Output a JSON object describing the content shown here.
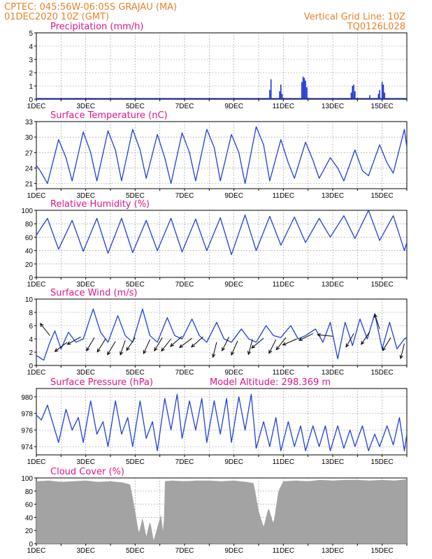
{
  "header": {
    "location": "CPTEC:  045:56W-06:05S  GRAJAU (MA)",
    "datetime": "01DEC2020 10Z (GMT)",
    "grid_line": "Vertical Grid Line: 10Z",
    "code": "TQ0126L028"
  },
  "colors": {
    "header": "#e8822a",
    "title": "#e0168a",
    "line": "#2040d8",
    "cloud": "#a3a3a3",
    "bar": "#1c32d0"
  },
  "chart_data": [
    {
      "id": "precip",
      "type": "bar",
      "title": "Precipitation (mm/h)",
      "ylim": [
        0,
        5
      ],
      "yticks": [
        "0",
        "1",
        "2",
        "3",
        "4",
        "5"
      ],
      "xticks": [
        "1DEC",
        "3DEC",
        "5DEC",
        "7DEC",
        "9DEC",
        "11DEC",
        "13DEC",
        "15DEC"
      ],
      "x_unit": "day_of_december",
      "bars": [
        {
          "x": 10.45,
          "v": 0.7
        },
        {
          "x": 10.5,
          "v": 1.5
        },
        {
          "x": 10.85,
          "v": 0.6
        },
        {
          "x": 10.9,
          "v": 1.1
        },
        {
          "x": 10.95,
          "v": 0.4
        },
        {
          "x": 11.75,
          "v": 1.3
        },
        {
          "x": 11.8,
          "v": 1.7
        },
        {
          "x": 11.85,
          "v": 1.6
        },
        {
          "x": 11.9,
          "v": 1.4
        },
        {
          "x": 11.95,
          "v": 0.9
        },
        {
          "x": 13.75,
          "v": 0.5
        },
        {
          "x": 13.8,
          "v": 1.0
        },
        {
          "x": 13.85,
          "v": 1.1
        },
        {
          "x": 13.9,
          "v": 0.6
        },
        {
          "x": 14.5,
          "v": 0.3
        },
        {
          "x": 14.85,
          "v": 0.4
        },
        {
          "x": 14.9,
          "v": 0.7
        },
        {
          "x": 15.0,
          "v": 1.3
        },
        {
          "x": 15.05,
          "v": 1.1
        },
        {
          "x": 15.1,
          "v": 0.5
        }
      ]
    },
    {
      "id": "temp",
      "type": "line",
      "title": "Surface Temperature (nC)",
      "ylim": [
        20,
        33
      ],
      "yticks": [
        "21",
        "24",
        "27",
        "30",
        "33"
      ],
      "ytick_values": [
        21,
        24,
        27,
        30,
        33
      ],
      "xticks": [
        "1DEC",
        "3DEC",
        "5DEC",
        "7DEC",
        "9DEC",
        "11DEC",
        "13DEC",
        "15DEC"
      ],
      "x": [
        1.0,
        1.15,
        1.45,
        1.9,
        2.2,
        2.45,
        2.9,
        3.2,
        3.45,
        3.9,
        4.2,
        4.45,
        4.9,
        5.2,
        5.45,
        5.9,
        6.2,
        6.45,
        6.9,
        7.2,
        7.45,
        7.9,
        8.2,
        8.45,
        8.9,
        9.2,
        9.45,
        9.9,
        10.2,
        10.45,
        10.9,
        11.2,
        11.45,
        11.9,
        12.2,
        12.45,
        12.9,
        13.2,
        13.45,
        13.9,
        14.2,
        14.45,
        14.9,
        15.2,
        15.45,
        15.9,
        16.0
      ],
      "y": [
        24.5,
        23.5,
        21.0,
        29.5,
        26.0,
        21.5,
        31.0,
        27.0,
        21.5,
        31.2,
        27.5,
        21.5,
        31.5,
        27.5,
        22.0,
        30.5,
        26.0,
        21.0,
        30.8,
        27.0,
        21.5,
        31.5,
        28.0,
        21.5,
        30.5,
        27.0,
        21.0,
        32.0,
        28.5,
        21.5,
        29.5,
        25.0,
        22.0,
        29.0,
        25.5,
        22.0,
        26.0,
        24.0,
        21.5,
        27.5,
        23.5,
        22.5,
        28.5,
        25.0,
        23.0,
        31.5,
        28.0
      ]
    },
    {
      "id": "rh",
      "type": "line",
      "title": "Relative Humidity (%)",
      "ylim": [
        0,
        100
      ],
      "yticks": [
        "0",
        "20",
        "40",
        "60",
        "80",
        "100"
      ],
      "ytick_values": [
        0,
        20,
        40,
        60,
        80,
        100
      ],
      "xticks": [
        "1DEC",
        "3DEC",
        "5DEC",
        "7DEC",
        "9DEC",
        "11DEC",
        "13DEC",
        "15DEC"
      ],
      "x": [
        1.0,
        1.45,
        1.9,
        2.45,
        2.9,
        3.45,
        3.9,
        4.45,
        4.9,
        5.45,
        5.9,
        6.45,
        6.9,
        7.45,
        7.9,
        8.45,
        8.9,
        9.45,
        9.9,
        10.45,
        10.9,
        11.45,
        11.9,
        12.45,
        12.9,
        13.45,
        13.9,
        14.45,
        14.9,
        15.45,
        15.9,
        16.0
      ],
      "y": [
        63,
        88,
        42,
        85,
        39,
        88,
        36,
        88,
        37,
        85,
        40,
        88,
        38,
        87,
        40,
        89,
        34,
        93,
        40,
        91,
        48,
        90,
        52,
        88,
        60,
        92,
        58,
        100,
        55,
        92,
        40,
        52
      ]
    },
    {
      "id": "wind",
      "type": "line",
      "title": "Surface Wind (m/s)",
      "ylim": [
        0,
        10
      ],
      "yticks": [
        "0",
        "2",
        "4",
        "6",
        "8",
        "10"
      ],
      "ytick_values": [
        0,
        2,
        4,
        6,
        8,
        10
      ],
      "xticks": [
        "1DEC",
        "3DEC",
        "5DEC",
        "7DEC",
        "9DEC",
        "11DEC",
        "13DEC",
        "15DEC"
      ],
      "x": [
        1.0,
        1.3,
        1.55,
        1.75,
        2.0,
        2.3,
        2.6,
        2.9,
        3.3,
        3.6,
        3.9,
        4.3,
        4.6,
        4.9,
        5.3,
        5.6,
        5.9,
        6.3,
        6.6,
        6.9,
        7.3,
        7.6,
        7.9,
        8.3,
        8.6,
        8.9,
        9.3,
        9.6,
        9.9,
        10.3,
        10.6,
        10.9,
        11.3,
        11.6,
        11.9,
        12.3,
        12.6,
        12.9,
        13.2,
        13.5,
        13.8,
        14.1,
        14.4,
        14.7,
        15.0,
        15.3,
        15.6,
        15.9,
        16.0
      ],
      "y": [
        1.5,
        0.8,
        3.5,
        5.2,
        2.5,
        5.0,
        3.5,
        4.0,
        8.5,
        5.0,
        3.5,
        7.5,
        4.5,
        3.5,
        8.5,
        4.5,
        3.5,
        7.2,
        4.5,
        4.0,
        7.0,
        4.5,
        3.5,
        6.5,
        4.0,
        3.5,
        5.5,
        4.0,
        3.5,
        6.0,
        4.5,
        4.2,
        6.0,
        4.0,
        4.5,
        5.5,
        3.5,
        6.5,
        1.0,
        6.5,
        3.0,
        7.0,
        4.0,
        7.8,
        2.5,
        6.5,
        2.5,
        4.0,
        4.2
      ],
      "arrows": [
        {
          "x": 1.55,
          "y": 4.5,
          "dx": -0.4,
          "dy": 0.5
        },
        {
          "x": 2.25,
          "y": 3.5,
          "dx": -0.8,
          "dy": -0.6
        },
        {
          "x": 2.8,
          "y": 4.3,
          "dx": -0.9,
          "dy": -0.5
        },
        {
          "x": 3.35,
          "y": 4.2,
          "dx": -0.6,
          "dy": -1.0
        },
        {
          "x": 3.8,
          "y": 4.0,
          "dx": -0.5,
          "dy": -0.8
        },
        {
          "x": 4.2,
          "y": 3.6,
          "dx": -0.6,
          "dy": -1.0
        },
        {
          "x": 4.6,
          "y": 3.8,
          "dx": -0.4,
          "dy": -1.2
        },
        {
          "x": 5.0,
          "y": 4.2,
          "dx": -0.6,
          "dy": -0.9
        },
        {
          "x": 5.6,
          "y": 3.9,
          "dx": -0.5,
          "dy": -1.1
        },
        {
          "x": 6.1,
          "y": 4.2,
          "dx": -0.6,
          "dy": -1.0
        },
        {
          "x": 6.45,
          "y": 4.0,
          "dx": -0.7,
          "dy": -0.9
        },
        {
          "x": 6.9,
          "y": 4.4,
          "dx": -0.8,
          "dy": -0.7
        },
        {
          "x": 7.3,
          "y": 4.1,
          "dx": -0.8,
          "dy": -0.6
        },
        {
          "x": 7.75,
          "y": 4.3,
          "dx": -0.8,
          "dy": -0.7
        },
        {
          "x": 8.3,
          "y": 3.5,
          "dx": -0.3,
          "dy": -1.2
        },
        {
          "x": 8.8,
          "y": 4.3,
          "dx": -0.6,
          "dy": -1.2
        },
        {
          "x": 9.15,
          "y": 3.7,
          "dx": -0.4,
          "dy": -0.9
        },
        {
          "x": 9.75,
          "y": 3.9,
          "dx": -0.3,
          "dy": -1.1
        },
        {
          "x": 10.2,
          "y": 4.1,
          "dx": -0.6,
          "dy": -0.5
        },
        {
          "x": 10.7,
          "y": 3.9,
          "dx": -0.5,
          "dy": -1.0
        },
        {
          "x": 11.1,
          "y": 4.2,
          "dx": -0.7,
          "dy": -0.9
        },
        {
          "x": 11.55,
          "y": 4.0,
          "dx": -0.7,
          "dy": -0.3
        },
        {
          "x": 12.2,
          "y": 4.8,
          "dx": -1.2,
          "dy": -0.6
        },
        {
          "x": 13.0,
          "y": 4.4,
          "dx": -1.0,
          "dy": 0.1
        },
        {
          "x": 13.85,
          "y": 4.8,
          "dx": -0.4,
          "dy": -0.7
        },
        {
          "x": 14.5,
          "y": 5.1,
          "dx": -0.4,
          "dy": -0.6
        },
        {
          "x": 14.9,
          "y": 5.5,
          "dx": -0.2,
          "dy": 0.6
        },
        {
          "x": 15.35,
          "y": 4.2,
          "dx": -0.5,
          "dy": -0.8
        },
        {
          "x": 15.9,
          "y": 3.3,
          "dx": -0.2,
          "dy": -0.8
        }
      ]
    },
    {
      "id": "press",
      "type": "line",
      "title": "Surface Pressure (hPa)",
      "annotation": "Model Altitude: 298.369 m",
      "ylim": [
        973,
        981
      ],
      "yticks": [
        "974",
        "976",
        "978",
        "980"
      ],
      "ytick_values": [
        974,
        976,
        978,
        980
      ],
      "xticks": [
        "1DEC",
        "3DEC",
        "5DEC",
        "7DEC",
        "9DEC",
        "11DEC",
        "13DEC",
        "15DEC"
      ],
      "x": [
        1.0,
        1.2,
        1.45,
        1.7,
        1.9,
        2.2,
        2.45,
        2.7,
        2.9,
        3.2,
        3.45,
        3.7,
        3.9,
        4.2,
        4.45,
        4.7,
        4.9,
        5.2,
        5.45,
        5.7,
        5.9,
        6.2,
        6.45,
        6.7,
        6.9,
        7.2,
        7.45,
        7.7,
        7.9,
        8.2,
        8.45,
        8.7,
        8.9,
        9.2,
        9.45,
        9.7,
        9.9,
        10.2,
        10.45,
        10.7,
        10.9,
        11.2,
        11.45,
        11.7,
        11.9,
        12.2,
        12.45,
        12.7,
        12.9,
        13.2,
        13.45,
        13.7,
        13.9,
        14.2,
        14.45,
        14.7,
        14.9,
        15.2,
        15.45,
        15.7,
        15.9,
        16.0
      ],
      "y": [
        977.8,
        977.2,
        979.0,
        976.5,
        974.5,
        978.5,
        976.0,
        977.5,
        974.5,
        979.5,
        975.5,
        977.0,
        974.0,
        979.5,
        975.5,
        977.5,
        974.0,
        979.5,
        975.0,
        977.0,
        973.5,
        979.8,
        976.0,
        980.3,
        975.0,
        979.5,
        976.0,
        979.8,
        974.5,
        979.5,
        975.5,
        979.8,
        974.5,
        980.0,
        976.0,
        980.3,
        973.8,
        977.0,
        974.0,
        977.5,
        973.5,
        977.0,
        974.0,
        976.5,
        973.5,
        976.5,
        974.0,
        976.5,
        973.5,
        976.5,
        973.8,
        976.0,
        974.0,
        976.5,
        973.5,
        975.5,
        974.0,
        976.5,
        974.2,
        977.5,
        973.5,
        975.5
      ]
    },
    {
      "id": "cloud",
      "type": "area",
      "title": "Cloud Cover (%)",
      "ylim": [
        0,
        100
      ],
      "yticks": [
        "0",
        "20",
        "40",
        "60",
        "80",
        "100"
      ],
      "ytick_values": [
        0,
        20,
        40,
        60,
        80,
        100
      ],
      "xticks": [
        "1DEC",
        "3DEC",
        "5DEC",
        "7DEC",
        "9DEC",
        "11DEC",
        "13DEC",
        "15DEC"
      ],
      "x": [
        1.0,
        1.5,
        2.0,
        2.5,
        3.0,
        3.5,
        4.0,
        4.5,
        4.8,
        5.0,
        5.15,
        5.3,
        5.45,
        5.6,
        5.75,
        5.9,
        6.05,
        6.15,
        6.2,
        6.5,
        7.0,
        7.5,
        8.0,
        8.5,
        9.0,
        9.5,
        9.8,
        10.0,
        10.2,
        10.4,
        10.6,
        10.8,
        11.0,
        11.5,
        12.0,
        12.5,
        13.0,
        13.5,
        14.0,
        14.5,
        15.0,
        15.5,
        16.0
      ],
      "y": [
        95,
        96,
        94,
        95,
        96,
        94,
        95,
        93,
        90,
        50,
        15,
        40,
        10,
        35,
        5,
        25,
        45,
        10,
        95,
        96,
        95,
        96,
        96,
        95,
        96,
        94,
        92,
        50,
        25,
        55,
        30,
        80,
        95,
        96,
        95,
        97,
        96,
        97,
        97,
        96,
        97,
        96,
        98
      ]
    }
  ]
}
